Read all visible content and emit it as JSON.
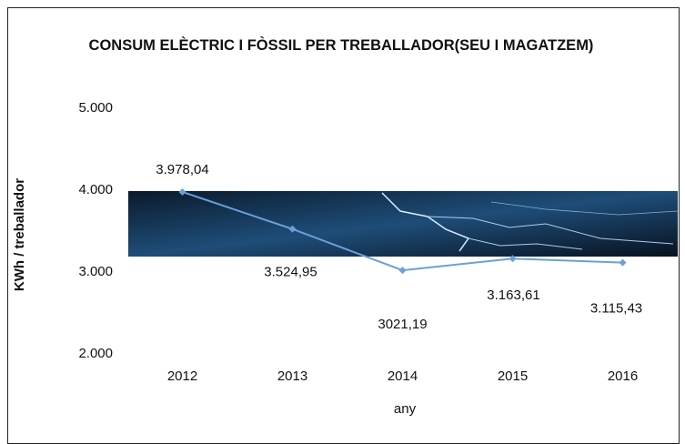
{
  "chart_data": {
    "type": "line",
    "title": "CONSUM ELÈCTRIC I FÒSSIL PER TREBALLADOR(SEU I MAGATZEM)",
    "y_label": "KWh / treballador",
    "x_label": "any",
    "categories": [
      "2012",
      "2013",
      "2014",
      "2015",
      "2016"
    ],
    "values": [
      3978.04,
      3524.95,
      3021.19,
      3163.61,
      3115.43
    ],
    "value_labels": [
      "3.978,04",
      "3.524,95",
      "3021,19",
      "3.163,61",
      "3.115,43"
    ],
    "color": "#6a9fd8",
    "ylim": [
      2000,
      5000
    ],
    "yticks": [
      {
        "value": 2000,
        "label": "2.000"
      },
      {
        "value": 3000,
        "label": "3.000"
      },
      {
        "value": 4000,
        "label": "4.000"
      },
      {
        "value": 5000,
        "label": "5.000"
      }
    ],
    "grid": false
  }
}
